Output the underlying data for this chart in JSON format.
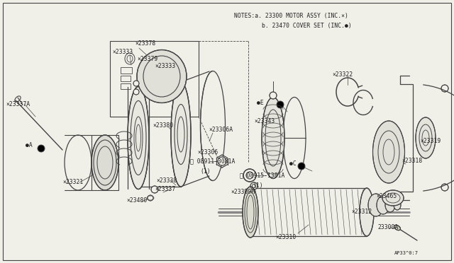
{
  "bg_color": "#f0f0e8",
  "line_color": "#444444",
  "text_color": "#222222",
  "notes_line1": "NOTES:a. 23300 MOTOR ASSY (INC.×)",
  "notes_line2": "        b. 23470 COVER SET (INC.●)",
  "diagram_id": "AP33^0:7",
  "figw": 6.4,
  "figh": 3.72,
  "dpi": 100
}
